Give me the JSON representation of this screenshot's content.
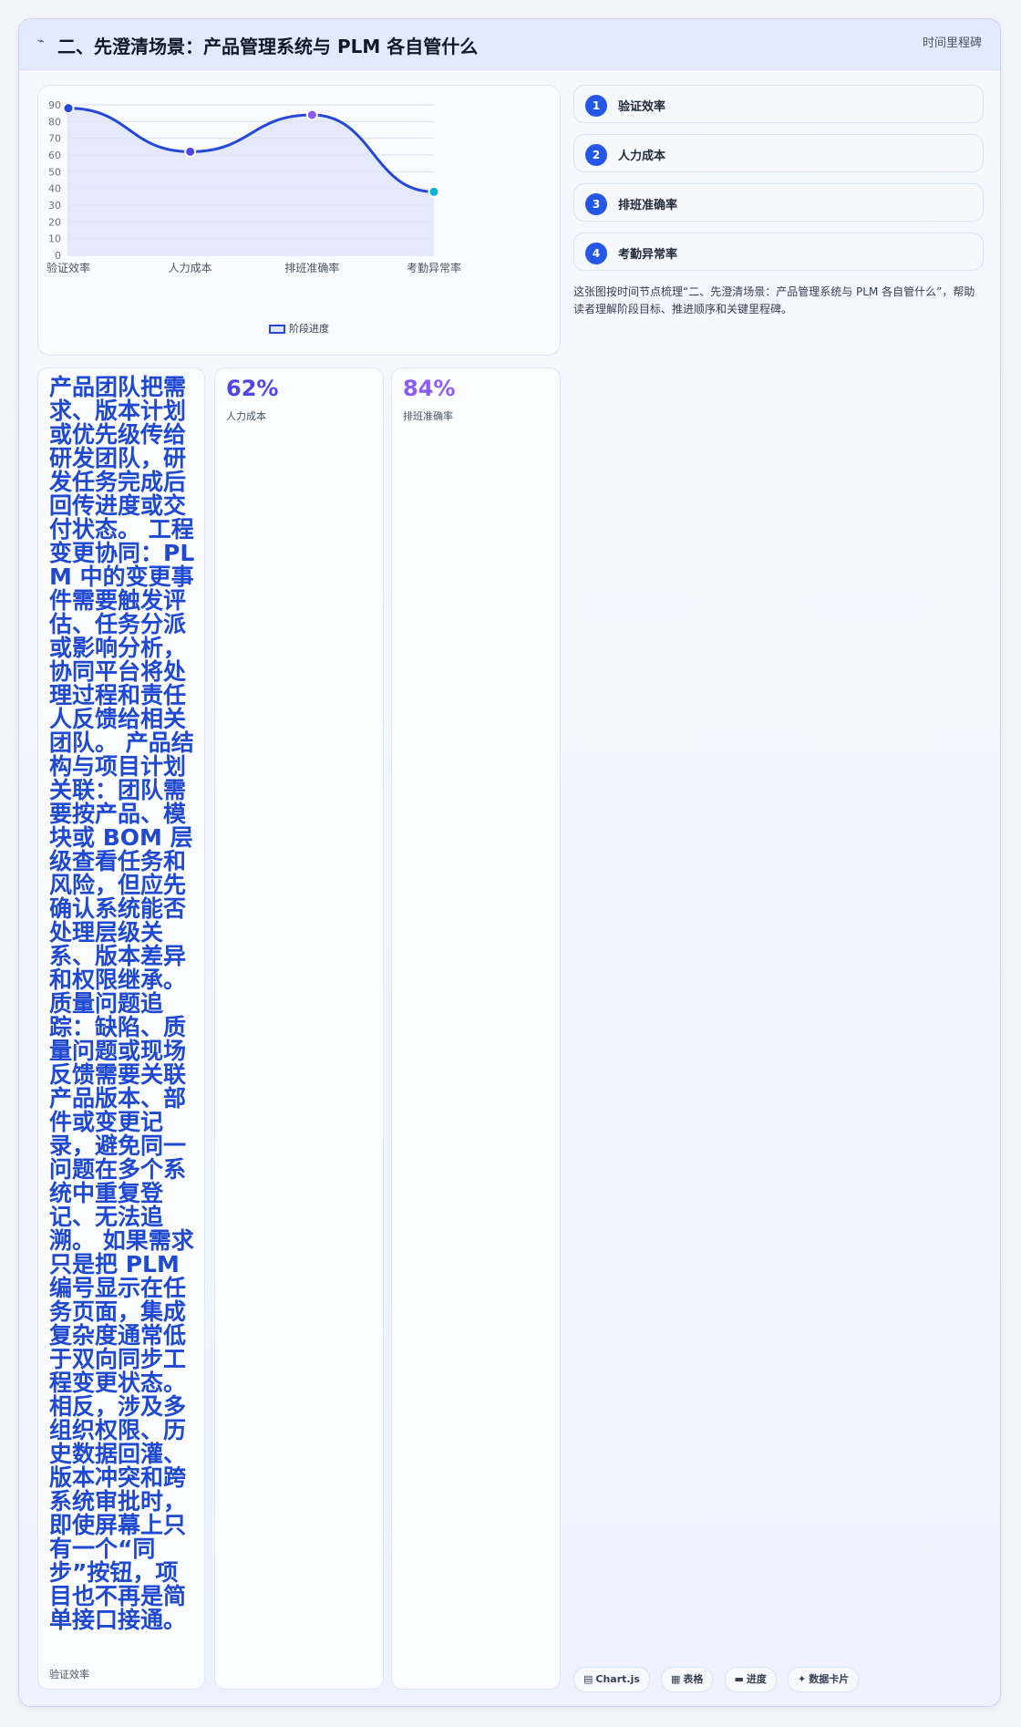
{
  "header": {
    "icon": "line-chart-icon",
    "title": "二、先澄清场景：产品管理系统与 PLM 各自管什么",
    "tag": "时间里程碑"
  },
  "chart_data": {
    "type": "line",
    "categories": [
      "验证效率",
      "人力成本",
      "排班准确率",
      "考勤异常率"
    ],
    "series": [
      {
        "name": "阶段进度",
        "values": [
          88,
          62,
          84,
          38
        ]
      }
    ],
    "ylim": [
      0,
      90
    ],
    "yticks": [
      0,
      10,
      20,
      30,
      40,
      50,
      60,
      70,
      80,
      90
    ],
    "grid": true,
    "legend_position": "bottom",
    "point_colors": [
      "#2448d8",
      "#4f46e5",
      "#8b5cf6",
      "#06b6d4"
    ],
    "line_color": "#2448d8",
    "fill_color": "#dfe5fb"
  },
  "steps": [
    {
      "num": "1",
      "label": "验证效率"
    },
    {
      "num": "2",
      "label": "人力成本"
    },
    {
      "num": "3",
      "label": "排班准确率"
    },
    {
      "num": "4",
      "label": "考勤异常率"
    }
  ],
  "description": "这张图按时间节点梳理“二、先澄清场景：产品管理系统与 PLM 各自管什么”，帮助读者理解阶段目标、推进顺序和关键里程碑。",
  "stats": [
    {
      "text": "产品团队把需求、版本计划或优先级传给研发团队，研发任务完成后回传进度或交付状态。 工程变更协同：PLM 中的变更事件需要触发评估、任务分派或影响分析，协同平台将处理过程和责任人反馈给相关团队。 产品结构与项目计划关联：团队需要按产品、模块或 BOM 层级查看任务和风险，但应先确认系统能否处理层级关系、版本差异和权限继承。 质量问题追踪：缺陷、质量问题或现场反馈需要关联产品版本、部件或变更记录，避免同一问题在多个系统中重复登记、无法追溯。 如果需求只是把 PLM 编号显示在任务页面，集成复杂度通常低于双向同步工程变更状态。相反，涉及多组织权限、历史数据回灌、版本冲突和跨系统审批时，即使屏幕上只有一个“同步”按钮，项目也不再是简单接口接通。",
      "label": "验证效率"
    },
    {
      "value": "62%",
      "label": "人力成本",
      "color": "#4f46e5"
    },
    {
      "value": "84%",
      "label": "排班准确率",
      "color": "#8b5cf6"
    }
  ],
  "chips": [
    {
      "icon": "▤",
      "label": "Chart.js"
    },
    {
      "icon": "▦",
      "label": "表格"
    },
    {
      "icon": "▬",
      "label": "进度"
    },
    {
      "icon": "✦",
      "label": "数据卡片"
    }
  ]
}
